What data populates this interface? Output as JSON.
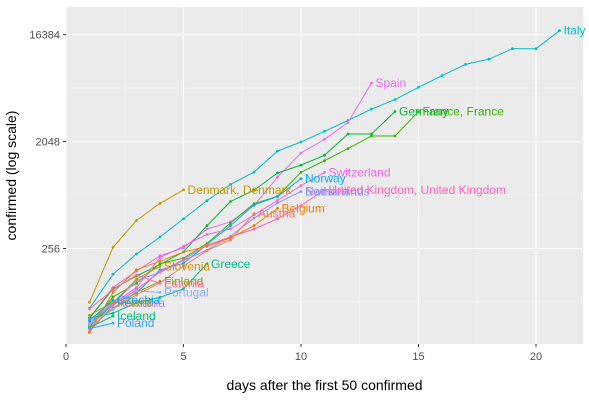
{
  "chart_data": {
    "type": "line",
    "xlabel": "days after the first 50 confirmed",
    "ylabel": "confirmed  (log scale)",
    "xlim": [
      0,
      22
    ],
    "ylim": [
      40,
      28000
    ],
    "y_scale": "log2",
    "xticks": [
      0,
      5,
      10,
      15,
      20
    ],
    "yticks": [
      256,
      2048,
      16384
    ],
    "grid": true,
    "legend": "none (direct labels at line ends)",
    "colors": {
      "panel_background": "#ebebeb",
      "grid_major": "#ffffff",
      "grid_minor": "#f5f5f5",
      "axis_text": "#4d4d4d",
      "axis_title": "#000000"
    },
    "series": [
      {
        "name": "Italy",
        "color": "#00bfc4",
        "x": [
          1,
          2,
          3,
          4,
          5,
          6,
          7,
          8,
          9,
          10,
          11,
          12,
          13,
          14,
          15,
          16,
          17,
          18,
          19,
          20,
          21
        ],
        "y": [
          80,
          155,
          230,
          320,
          455,
          650,
          890,
          1130,
          1700,
          2030,
          2500,
          3080,
          3850,
          4630,
          5880,
          7370,
          9170,
          10150,
          12460,
          12460,
          17660
        ],
        "labels": [
          "Italy"
        ]
      },
      {
        "name": "Spain",
        "color": "#e76bf3",
        "x": [
          1,
          2,
          3,
          4,
          5,
          6,
          7,
          8,
          9,
          10,
          11,
          12,
          13
        ],
        "y": [
          66,
          120,
          165,
          222,
          259,
          374,
          430,
          589,
          1024,
          1639,
          2140,
          2965,
          6391
        ],
        "labels": [
          "Spain"
        ]
      },
      {
        "name": "Germany",
        "color": "#00ba38",
        "x": [
          1,
          2,
          3,
          4,
          5,
          6,
          7,
          8,
          9,
          10,
          11,
          12,
          13,
          14
        ],
        "y": [
          66,
          117,
          150,
          188,
          240,
          400,
          639,
          795,
          1112,
          1296,
          1567,
          2369,
          2369,
          3675
        ],
        "labels": [
          "Germany"
        ]
      },
      {
        "name": "France",
        "color": "#39b600",
        "x": [
          1,
          2,
          3,
          4,
          5,
          6,
          7,
          8,
          9,
          10,
          11,
          12,
          13,
          14,
          15
        ],
        "y": [
          57,
          100,
          130,
          191,
          212,
          282,
          420,
          613,
          706,
          1126,
          1412,
          1784,
          2281,
          2281,
          3661
        ],
        "labels": [
          "France, France"
        ]
      },
      {
        "name": "Switzerland",
        "color": "#f564e3",
        "x": [
          1,
          2,
          3,
          4,
          5,
          6,
          7,
          8,
          9,
          10,
          11
        ],
        "y": [
          58,
          87,
          120,
          214,
          268,
          337,
          374,
          491,
          652,
          868,
          1125
        ],
        "labels": [
          "Switzerland"
        ]
      },
      {
        "name": "Norway",
        "color": "#00b0f6",
        "x": [
          1,
          2,
          3,
          4,
          5,
          6,
          7,
          8,
          9,
          10
        ],
        "y": [
          56,
          87,
          108,
          169,
          192,
          277,
          400,
          598,
          702,
          996
        ],
        "labels": [
          "Norway"
        ]
      },
      {
        "name": "Sweden",
        "color": "#9590ff",
        "x": [
          1,
          2,
          3,
          4,
          5,
          6,
          7,
          8,
          9,
          10
        ],
        "y": [
          61,
          87,
          137,
          161,
          203,
          248,
          326,
          461,
          620,
          775
        ],
        "labels": [
          "Sweden",
          "Netherlands"
        ]
      },
      {
        "name": "United Kingdom",
        "color": "#ff62bc",
        "x": [
          1,
          2,
          3,
          4,
          5,
          6,
          7,
          8,
          9,
          10,
          11
        ],
        "y": [
          51,
          85,
          115,
          163,
          206,
          273,
          321,
          373,
          456,
          590,
          798
        ],
        "labels": [
          "United Kingdom, United Kingdom"
        ]
      },
      {
        "name": "Denmark",
        "color": "#c49a00",
        "x": [
          1,
          2,
          3,
          4,
          5
        ],
        "y": [
          90,
          262,
          442,
          615,
          800
        ],
        "labels": [
          "Denmark, Denmark"
        ]
      },
      {
        "name": "Belgium",
        "color": "#ef7f00",
        "x": [
          1,
          2,
          3,
          4,
          5,
          6,
          7,
          8,
          9
        ],
        "y": [
          50,
          109,
          169,
          200,
          239,
          267,
          314,
          399,
          559
        ],
        "labels": [
          "Belgium"
        ]
      },
      {
        "name": "Austria",
        "color": "#f8766d",
        "x": [
          1,
          2,
          3,
          4,
          5,
          6,
          7,
          8
        ],
        "y": [
          55,
          79,
          104,
          131,
          182,
          246,
          302,
          504
        ],
        "labels": [
          "Austria"
        ]
      },
      {
        "name": "Greece",
        "color": "#00c08b",
        "x": [
          1,
          2,
          3,
          4,
          5,
          6
        ],
        "y": [
          66,
          73,
          89,
          99,
          117,
          190
        ],
        "labels": [
          "Greece"
        ]
      },
      {
        "name": "Finland",
        "color": "#7cae00",
        "x": [
          1,
          2,
          3,
          4
        ],
        "y": [
          59,
          80,
          109,
          135
        ],
        "labels": [
          "Finland"
        ]
      },
      {
        "name": "Slovenia",
        "color": "#d89000",
        "x": [
          1,
          2,
          3,
          4
        ],
        "y": [
          57,
          89,
          141,
          181
        ],
        "labels": [
          "Slovenia"
        ]
      },
      {
        "name": "Estonia",
        "color": "#ff6c91",
        "x": [
          1,
          2,
          3,
          4
        ],
        "y": [
          79,
          115,
          153,
          130
        ],
        "labels": [
          "Estonia"
        ]
      },
      {
        "name": "Portugal",
        "color": "#8ab0ff",
        "x": [
          1,
          2,
          3,
          4
        ],
        "y": [
          59,
          78,
          112,
          109
        ],
        "labels": [
          "Portugal"
        ]
      },
      {
        "name": "Romania",
        "color": "#b983ff",
        "x": [
          1,
          2
        ],
        "y": [
          64,
          89
        ],
        "labels": [
          "Romania"
        ]
      },
      {
        "name": "Ireland",
        "color": "#a3a500",
        "x": [
          1,
          2
        ],
        "y": [
          70,
          90
        ],
        "labels": [
          "Ireland"
        ]
      },
      {
        "name": "Czechia",
        "color": "#00a9ff",
        "x": [
          1,
          2
        ],
        "y": [
          63,
          94
        ],
        "labels": [
          "Czechia"
        ]
      },
      {
        "name": "Iceland",
        "color": "#00bf7d",
        "x": [
          1,
          2
        ],
        "y": [
          55,
          69
        ],
        "labels": [
          "Iceland"
        ]
      },
      {
        "name": "Poland",
        "color": "#35a2ff",
        "x": [
          1,
          2
        ],
        "y": [
          54,
          60
        ],
        "labels": [
          "Poland"
        ]
      }
    ]
  }
}
